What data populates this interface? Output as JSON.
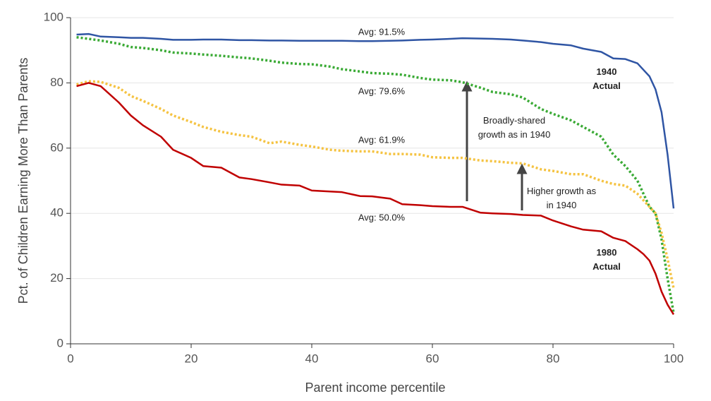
{
  "chart_data": {
    "type": "line",
    "xlabel": "Parent income percentile",
    "ylabel": "Pct. of Children Earning More Than Parents",
    "x": [
      1,
      3,
      5,
      8,
      10,
      12,
      15,
      17,
      20,
      22,
      25,
      28,
      30,
      33,
      35,
      38,
      40,
      43,
      45,
      48,
      50,
      53,
      55,
      58,
      60,
      63,
      65,
      68,
      70,
      73,
      75,
      78,
      80,
      83,
      85,
      88,
      90,
      92,
      94,
      95,
      96,
      97,
      98,
      99,
      100
    ],
    "series": [
      {
        "name": "1940 Actual",
        "color": "#2f55a4",
        "dashed": false,
        "values": [
          94.8,
          95,
          94.2,
          94,
          93.8,
          93.8,
          93.5,
          93.2,
          93.2,
          93.3,
          93.3,
          93.1,
          93.1,
          93,
          93,
          92.9,
          92.9,
          92.9,
          92.9,
          92.8,
          92.8,
          92.9,
          93,
          93.2,
          93.3,
          93.5,
          93.7,
          93.6,
          93.5,
          93.3,
          93,
          92.5,
          92,
          91.5,
          90.5,
          89.5,
          87.5,
          87.3,
          86,
          84,
          82,
          78,
          71,
          58,
          41.5
        ]
      },
      {
        "name": "Broadly-shared growth as in 1940",
        "color": "#3aaa35",
        "dashed": true,
        "values": [
          94,
          93.5,
          93,
          92,
          91,
          90.7,
          90,
          89.3,
          89,
          88.7,
          88.3,
          87.8,
          87.5,
          86.8,
          86.2,
          85.8,
          85.7,
          85,
          84.2,
          83.5,
          83,
          82.8,
          82.5,
          81.5,
          81,
          80.8,
          80.2,
          78.5,
          77.2,
          76.5,
          75.5,
          72,
          70.5,
          68.5,
          66.5,
          63.5,
          58,
          54.5,
          50,
          46,
          42,
          40,
          32,
          20,
          9.5
        ]
      },
      {
        "name": "Higher growth as in 1940",
        "color": "#f5c342",
        "dashed": true,
        "values": [
          79.5,
          80.5,
          80.3,
          78.5,
          76,
          74.5,
          72,
          70,
          68,
          66.5,
          65,
          64,
          63.5,
          61.5,
          62,
          61,
          60.5,
          59.5,
          59.2,
          59,
          59,
          58.2,
          58.2,
          58,
          57.2,
          57,
          57,
          56.2,
          56,
          55.5,
          55.3,
          53.5,
          53,
          52,
          52,
          50,
          49,
          48.5,
          46,
          44,
          42,
          40,
          34,
          26,
          17
        ]
      },
      {
        "name": "1980 Actual",
        "color": "#c00000",
        "dashed": false,
        "values": [
          79,
          80,
          79,
          74,
          70,
          67,
          63.5,
          59.5,
          57,
          54.5,
          54,
          51,
          50.5,
          49.5,
          48.8,
          48.5,
          47,
          46.7,
          46.5,
          45.3,
          45.2,
          44.5,
          42.8,
          42.5,
          42.2,
          42,
          42,
          40.2,
          40,
          39.8,
          39.5,
          39.3,
          37.8,
          36,
          35,
          34.5,
          32.5,
          31.5,
          29,
          27.5,
          25.5,
          21.5,
          16,
          12,
          9
        ]
      }
    ],
    "annotations": [
      "Avg: 91.5%",
      "Avg: 79.6%",
      "Avg: 61.9%",
      "Avg: 50.0%"
    ],
    "xlim": [
      0,
      100
    ],
    "xticks": [
      0,
      20,
      40,
      60,
      80,
      100
    ],
    "ylim": [
      0,
      100
    ],
    "yticks": [
      0,
      20,
      40,
      60,
      80,
      100
    ],
    "grid": true
  }
}
